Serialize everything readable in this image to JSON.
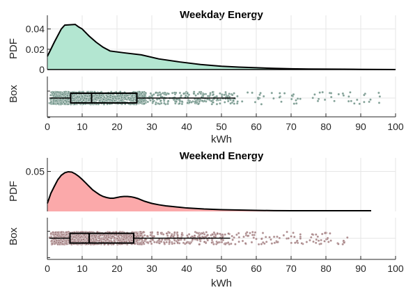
{
  "chart_data": [
    {
      "type": "area",
      "title": "Weekday Energy",
      "xlabel": "kWh",
      "ylabel_pdf": "PDF",
      "ylabel_box": "Box",
      "xlim": [
        0,
        100
      ],
      "ylim_pdf": [
        0,
        0.048
      ],
      "x_ticks": [
        "0",
        "10",
        "20",
        "30",
        "40",
        "50",
        "60",
        "70",
        "80",
        "90",
        "100"
      ],
      "y_ticks": [
        "0",
        "0.02",
        "0.04"
      ],
      "fill_color": "#b3e6d1",
      "point_color": "#6b8f84",
      "grid": true,
      "pdf": {
        "x": [
          0,
          2,
          4,
          5,
          8,
          9,
          10,
          12,
          14,
          16,
          18,
          22,
          27,
          32,
          38,
          44,
          50,
          55,
          60,
          65,
          70,
          75,
          80,
          85,
          90,
          95,
          100
        ],
        "y": [
          0.013,
          0.027,
          0.04,
          0.0438,
          0.0445,
          0.042,
          0.04,
          0.033,
          0.027,
          0.022,
          0.0183,
          0.0165,
          0.0145,
          0.0105,
          0.0075,
          0.005,
          0.0033,
          0.0024,
          0.0018,
          0.0012,
          0.0008,
          0.0005,
          0.0004,
          0.0003,
          0.0002,
          0.0001,
          0.0
        ]
      },
      "box": {
        "q1": 6.7,
        "median": 12.7,
        "q3": 25.7,
        "whisker_low": 0.6,
        "whisker_high": 54
      },
      "points_range": [
        0.5,
        95.5
      ]
    },
    {
      "type": "area",
      "title": "Weekend Energy",
      "xlabel": "kWh",
      "ylabel_pdf": "PDF",
      "ylabel_box": "Box",
      "xlim": [
        0,
        100
      ],
      "ylim_pdf": [
        0,
        0.06
      ],
      "x_ticks": [
        "0",
        "10",
        "20",
        "30",
        "40",
        "50",
        "60",
        "70",
        "80",
        "90",
        "100"
      ],
      "y_ticks": [
        "0.05"
      ],
      "fill_color": "#fba9aa",
      "point_color": "#a07a7c",
      "grid": true,
      "pdf": {
        "x": [
          0,
          1,
          2,
          3,
          4,
          5,
          6,
          7,
          8,
          9,
          10,
          11,
          12,
          13,
          14,
          15,
          16,
          17,
          18,
          19,
          20,
          21,
          22,
          23,
          24,
          25,
          26,
          27,
          28,
          29,
          30,
          32,
          34,
          36,
          38,
          40,
          45,
          50,
          55,
          60,
          65,
          70,
          75,
          80,
          85,
          90,
          93
        ],
        "y": [
          0.01,
          0.0226,
          0.0313,
          0.0396,
          0.0452,
          0.0483,
          0.0496,
          0.0492,
          0.047,
          0.0439,
          0.04,
          0.0357,
          0.0313,
          0.027,
          0.0239,
          0.0209,
          0.0187,
          0.0174,
          0.0165,
          0.0165,
          0.0174,
          0.0183,
          0.0187,
          0.0187,
          0.0183,
          0.0174,
          0.0161,
          0.0143,
          0.0126,
          0.0113,
          0.01,
          0.0083,
          0.007,
          0.0061,
          0.0052,
          0.0043,
          0.003,
          0.0022,
          0.0017,
          0.0013,
          0.001,
          0.0009,
          0.0009,
          0.0009,
          0.0009,
          0.0009,
          0.0009
        ]
      },
      "box": {
        "q1": 6.5,
        "median": 12.0,
        "q3": 24.8,
        "whisker_low": 0.6,
        "whisker_high": 52.5
      },
      "points_range": [
        0.5,
        86.5
      ]
    }
  ]
}
